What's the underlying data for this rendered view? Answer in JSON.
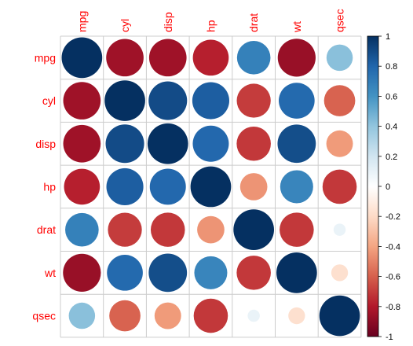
{
  "chart_data": {
    "type": "heatmap",
    "subtype": "correlation-circle-plot",
    "variables": [
      "mpg",
      "cyl",
      "disp",
      "hp",
      "drat",
      "wt",
      "qsec"
    ],
    "matrix": [
      [
        1.0,
        -0.85,
        -0.85,
        -0.78,
        0.68,
        -0.87,
        0.42
      ],
      [
        -0.85,
        1.0,
        0.9,
        0.83,
        -0.7,
        0.78,
        -0.59
      ],
      [
        -0.85,
        0.9,
        1.0,
        0.79,
        -0.71,
        0.89,
        -0.43
      ],
      [
        -0.78,
        0.83,
        0.79,
        1.0,
        -0.45,
        0.66,
        -0.71
      ],
      [
        0.68,
        -0.7,
        -0.71,
        -0.45,
        1.0,
        -0.71,
        0.09
      ],
      [
        -0.87,
        0.78,
        0.89,
        0.66,
        -0.71,
        1.0,
        -0.17
      ],
      [
        0.42,
        -0.59,
        -0.43,
        -0.71,
        0.09,
        -0.17,
        1.0
      ]
    ],
    "colorbar": {
      "range": [
        -1,
        1
      ],
      "ticks": [
        "1",
        "0.8",
        "0.6",
        "0.4",
        "0.2",
        "0",
        "-0.2",
        "-0.4",
        "-0.6",
        "-0.8",
        "-1"
      ],
      "tick_values": [
        1,
        0.8,
        0.6,
        0.4,
        0.2,
        0,
        -0.2,
        -0.4,
        -0.6,
        -0.8,
        -1
      ],
      "colors": [
        "#67001F",
        "#B2182B",
        "#D6604D",
        "#F4A582",
        "#FDDBC7",
        "#FFFFFF",
        "#D1E5F0",
        "#92C5DE",
        "#4393C3",
        "#2166AC",
        "#053061"
      ]
    },
    "label_color": "#FF0000",
    "grid": true,
    "legend_position": "right"
  }
}
